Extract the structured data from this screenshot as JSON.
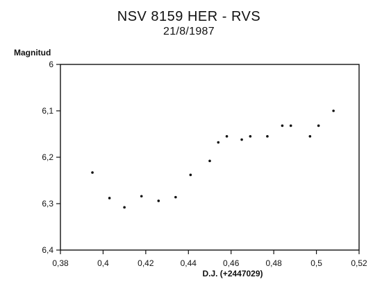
{
  "chart_data": {
    "type": "scatter",
    "title": "NSV 8159 HER - RVS",
    "subtitle": "21/8/1987",
    "xlabel": "D.J. (+2447029)",
    "ylabel": "Magnitud",
    "xlim": [
      0.38,
      0.52
    ],
    "ylim": [
      6,
      6.4
    ],
    "y_inverted": true,
    "grid": false,
    "x_ticks": [
      0.38,
      0.4,
      0.42,
      0.44,
      0.46,
      0.48,
      0.5,
      0.52
    ],
    "x_tick_labels": [
      "0,38",
      "0,4",
      "0,42",
      "0,44",
      "0,46",
      "0,48",
      "0,5",
      "0,52"
    ],
    "y_ticks": [
      6,
      6.1,
      6.2,
      6.3,
      6.4
    ],
    "y_tick_labels": [
      "6",
      "6,1",
      "6,2",
      "6,3",
      "6,4"
    ],
    "points": [
      {
        "x": 0.395,
        "y": 6.233
      },
      {
        "x": 0.403,
        "y": 6.288
      },
      {
        "x": 0.41,
        "y": 6.308
      },
      {
        "x": 0.418,
        "y": 6.284
      },
      {
        "x": 0.426,
        "y": 6.294
      },
      {
        "x": 0.434,
        "y": 6.286
      },
      {
        "x": 0.441,
        "y": 6.238
      },
      {
        "x": 0.45,
        "y": 6.208
      },
      {
        "x": 0.454,
        "y": 6.168
      },
      {
        "x": 0.458,
        "y": 6.155
      },
      {
        "x": 0.465,
        "y": 6.162
      },
      {
        "x": 0.469,
        "y": 6.155
      },
      {
        "x": 0.477,
        "y": 6.155
      },
      {
        "x": 0.484,
        "y": 6.132
      },
      {
        "x": 0.488,
        "y": 6.132
      },
      {
        "x": 0.497,
        "y": 6.155
      },
      {
        "x": 0.501,
        "y": 6.132
      },
      {
        "x": 0.508,
        "y": 6.1
      }
    ],
    "marker_color": "#111111",
    "axis_color": "#111111"
  }
}
